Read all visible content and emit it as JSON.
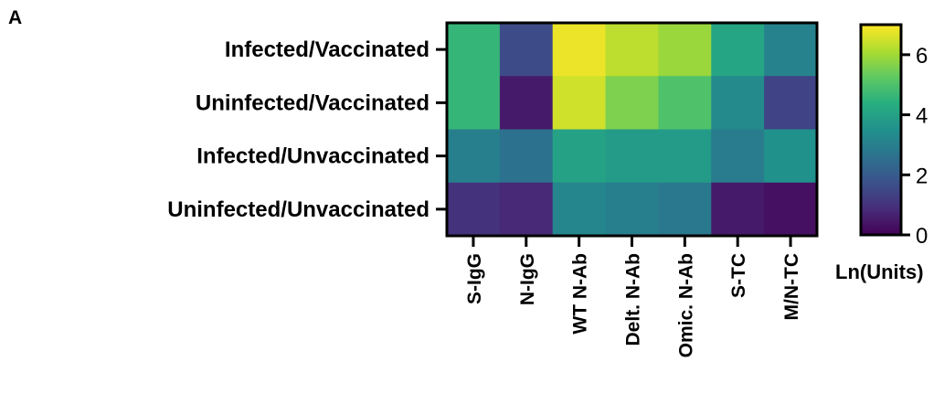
{
  "panel_label": "A",
  "chart_data": {
    "type": "heatmap",
    "rows": [
      "Infected/Vaccinated",
      "Uninfected/Vaccinated",
      "Infected/Unvaccinated",
      "Uninfected/Unvaccinated"
    ],
    "columns": [
      "S-IgG",
      "N-IgG",
      "WT N-Ab",
      "Delt. N-Ab",
      "Omic. N-Ab",
      "S-TC",
      "M/N-TC"
    ],
    "values": [
      [
        4.6,
        1.6,
        6.8,
        6.3,
        5.9,
        4.1,
        3.1
      ],
      [
        4.6,
        0.5,
        6.5,
        5.6,
        5.0,
        3.3,
        1.4
      ],
      [
        3.0,
        2.6,
        4.0,
        3.8,
        3.8,
        2.9,
        3.5
      ],
      [
        1.0,
        0.8,
        3.2,
        3.0,
        2.8,
        0.5,
        0.3
      ]
    ],
    "colorbar": {
      "title": "Ln(Units)",
      "range": [
        0,
        7
      ],
      "ticks": [
        "0",
        "2",
        "4",
        "6"
      ],
      "tick_values": [
        0,
        2,
        4,
        6
      ],
      "colormap": "viridis"
    }
  }
}
